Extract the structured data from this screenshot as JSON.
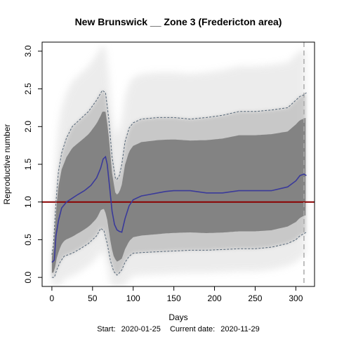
{
  "chart_data": {
    "type": "line",
    "title": "New Brunswick __ Zone 3 (Fredericton area)",
    "xlabel": "Days",
    "ylabel": "Reproductive number",
    "subtitle": {
      "start_label": "Start:",
      "start_date": "2020-01-25",
      "current_label": "Current date:",
      "current_date": "2020-11-29"
    },
    "xlim": [
      -12,
      323
    ],
    "ylim": [
      -0.12,
      3.12
    ],
    "xticks": [
      0,
      50,
      100,
      150,
      200,
      250,
      300
    ],
    "yticks": [
      0.0,
      0.5,
      1.0,
      1.5,
      2.0,
      2.5,
      3.0
    ],
    "ytick_labels": [
      "0.0",
      "0.5",
      "1.0",
      "1.5",
      "2.0",
      "2.5",
      "3.0"
    ],
    "reference_line": {
      "y": 1.0,
      "color": "#8b0000"
    },
    "current_day_marker": {
      "x": 310,
      "color": "#aaaaaa"
    },
    "colors": {
      "median": "#3a3a9a",
      "bounds": "#556677",
      "band": "#7f7f7f",
      "cloud": "#bdbdbd"
    },
    "median": {
      "x": [
        0,
        1,
        3,
        5,
        8,
        12,
        18,
        25,
        32,
        40,
        48,
        55,
        60,
        63,
        66,
        68,
        71,
        74,
        77,
        80,
        83,
        86,
        90,
        95,
        100,
        110,
        120,
        130,
        140,
        150,
        170,
        190,
        210,
        230,
        250,
        270,
        290,
        300,
        305,
        310,
        313
      ],
      "y": [
        0.2,
        0.21,
        0.23,
        0.55,
        0.75,
        0.92,
        1.0,
        1.05,
        1.1,
        1.15,
        1.22,
        1.32,
        1.45,
        1.57,
        1.6,
        1.5,
        1.2,
        0.88,
        0.7,
        0.63,
        0.61,
        0.6,
        0.78,
        0.95,
        1.03,
        1.08,
        1.1,
        1.12,
        1.14,
        1.15,
        1.15,
        1.12,
        1.12,
        1.15,
        1.15,
        1.15,
        1.2,
        1.28,
        1.35,
        1.37,
        1.35
      ]
    },
    "upper_bound": {
      "x": [
        0,
        2,
        5,
        8,
        12,
        18,
        25,
        35,
        45,
        55,
        62,
        66,
        70,
        74,
        78,
        80,
        83,
        86,
        90,
        95,
        100,
        110,
        130,
        150,
        170,
        190,
        210,
        230,
        250,
        270,
        290,
        300,
        305,
        310,
        313
      ],
      "y": [
        0.3,
        0.45,
        1.0,
        1.4,
        1.65,
        1.85,
        2.0,
        2.1,
        2.2,
        2.35,
        2.48,
        2.45,
        2.1,
        1.6,
        1.32,
        1.3,
        1.35,
        1.5,
        1.8,
        1.98,
        2.05,
        2.1,
        2.12,
        2.12,
        2.1,
        2.12,
        2.15,
        2.2,
        2.2,
        2.22,
        2.25,
        2.35,
        2.4,
        2.42,
        2.45
      ]
    },
    "lower_bound": {
      "x": [
        0,
        3,
        6,
        10,
        15,
        25,
        35,
        45,
        55,
        60,
        64,
        68,
        72,
        76,
        80,
        83,
        86,
        90,
        95,
        100,
        110,
        130,
        150,
        170,
        190,
        210,
        230,
        250,
        270,
        290,
        300,
        305,
        310,
        313
      ],
      "y": [
        0.0,
        0.0,
        0.1,
        0.2,
        0.28,
        0.32,
        0.38,
        0.45,
        0.55,
        0.65,
        0.62,
        0.45,
        0.22,
        0.08,
        0.03,
        0.06,
        0.1,
        0.2,
        0.28,
        0.32,
        0.33,
        0.34,
        0.35,
        0.36,
        0.36,
        0.37,
        0.38,
        0.38,
        0.4,
        0.45,
        0.5,
        0.55,
        0.58,
        0.6
      ]
    }
  }
}
